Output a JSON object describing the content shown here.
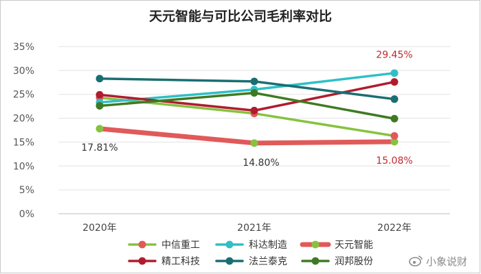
{
  "chart_data": {
    "type": "line",
    "title": "天元智能与可比公司毛利率对比",
    "categories": [
      "2020年",
      "2021年",
      "2022年"
    ],
    "yticks": [
      "0%",
      "5%",
      "10%",
      "15%",
      "20%",
      "25%",
      "30%",
      "35%"
    ],
    "ylim": [
      0,
      35
    ],
    "grid": true,
    "legend_position": "bottom",
    "series": [
      {
        "name": "中信重工",
        "values": [
          24.3,
          21.0,
          16.3
        ],
        "color": "#86c23f",
        "marker_color": "#e05a5a",
        "highlight": false
      },
      {
        "name": "科达制造",
        "values": [
          23.3,
          26.0,
          29.45
        ],
        "color": "#2fbfc6",
        "marker_color": "#2fbfc6",
        "highlight": false
      },
      {
        "name": "天元智能",
        "values": [
          17.81,
          14.8,
          15.08
        ],
        "color": "#e05a5a",
        "marker_color": "#86c23f",
        "highlight": true
      },
      {
        "name": "精工科技",
        "values": [
          24.9,
          21.6,
          27.6
        ],
        "color": "#b01c2e",
        "marker_color": "#b01c2e",
        "highlight": false
      },
      {
        "name": "法兰泰克",
        "values": [
          28.3,
          27.7,
          24.0
        ],
        "color": "#1a6e72",
        "marker_color": "#1a6e72",
        "highlight": false
      },
      {
        "name": "润邦股份",
        "values": [
          22.6,
          25.3,
          19.9
        ],
        "color": "#3f7a22",
        "marker_color": "#3f7a22",
        "highlight": false
      }
    ],
    "annotations": [
      {
        "text": "17.81%",
        "series": "天元智能",
        "index": 0,
        "color": "#333333"
      },
      {
        "text": "14.80%",
        "series": "天元智能",
        "index": 1,
        "color": "#333333"
      },
      {
        "text": "15.08%",
        "series": "天元智能",
        "index": 2,
        "color": "#c0282d"
      },
      {
        "text": "29.45%",
        "series": "科达制造",
        "index": 2,
        "color": "#c0282d"
      }
    ]
  },
  "watermark": {
    "text": "小象说财"
  }
}
